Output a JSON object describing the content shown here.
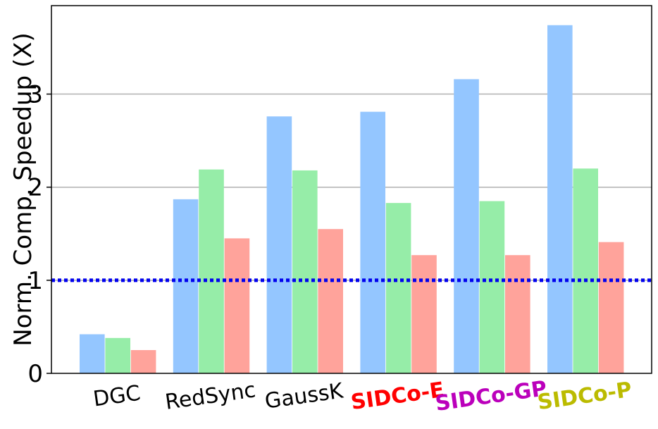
{
  "chart_data": {
    "type": "bar",
    "title": "",
    "xlabel": "",
    "ylabel": "Norm. Comp. Speedup (X)",
    "ylim": [
      0,
      3.95
    ],
    "yticks": [
      0,
      1,
      2,
      3
    ],
    "grid": "y-major",
    "reference_line": {
      "y": 1,
      "color": "#0000ee",
      "style": "dotted"
    },
    "categories": [
      {
        "label": "DGC",
        "color": "#000000",
        "bold": false
      },
      {
        "label": "RedSync",
        "color": "#000000",
        "bold": false
      },
      {
        "label": "GaussK",
        "color": "#000000",
        "bold": false
      },
      {
        "label": "SIDCo-E",
        "color": "#ff0000",
        "bold": true
      },
      {
        "label": "SIDCo-GP",
        "color": "#bb00bb",
        "bold": true
      },
      {
        "label": "SIDCo-P",
        "color": "#bbbb00",
        "bold": true
      }
    ],
    "series": [
      {
        "color": "#94c6ff",
        "values": [
          0.42,
          1.87,
          2.76,
          2.81,
          3.16,
          3.74
        ]
      },
      {
        "color": "#96eda8",
        "values": [
          0.38,
          2.19,
          2.18,
          1.83,
          1.85,
          2.2
        ]
      },
      {
        "color": "#ffa39b",
        "values": [
          0.25,
          1.45,
          1.55,
          1.27,
          1.27,
          1.41
        ]
      }
    ]
  }
}
